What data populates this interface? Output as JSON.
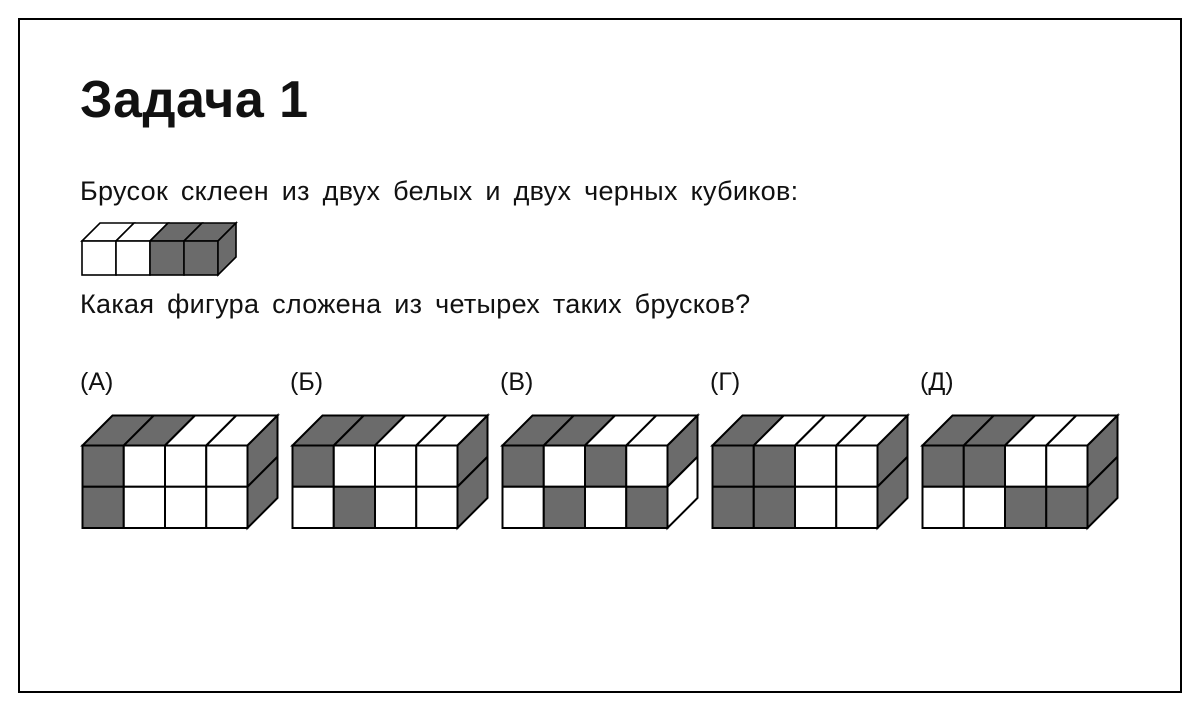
{
  "title": "Задача 1",
  "line1": "Брусок склеен из двух белых и двух черных кубиков:",
  "line2": "Какая фигура сложена из четырех таких брусков?",
  "colors": {
    "dark": "#6b6b6b",
    "light": "#ffffff",
    "stroke": "#000000",
    "bg": "#ffffff"
  },
  "bar": {
    "unit": 34,
    "depth": 18,
    "cells": [
      "L",
      "L",
      "D",
      "D"
    ]
  },
  "options": [
    {
      "label": "(А)",
      "top": [
        "D",
        "D",
        "L",
        "L"
      ],
      "side": [
        "D",
        "D"
      ],
      "front": [
        [
          "D",
          "L",
          "L",
          "L"
        ],
        [
          "D",
          "L",
          "L",
          "L"
        ]
      ]
    },
    {
      "label": "(Б)",
      "top": [
        "D",
        "D",
        "L",
        "L"
      ],
      "side": [
        "D",
        "D"
      ],
      "front": [
        [
          "D",
          "L",
          "L",
          "L"
        ],
        [
          "L",
          "D",
          "L",
          "L"
        ]
      ]
    },
    {
      "label": "(В)",
      "top": [
        "D",
        "D",
        "L",
        "L"
      ],
      "side": [
        "D",
        "L"
      ],
      "front": [
        [
          "D",
          "L",
          "D",
          "L"
        ],
        [
          "L",
          "D",
          "L",
          "D"
        ]
      ]
    },
    {
      "label": "(Г)",
      "top": [
        "D",
        "L",
        "L",
        "L"
      ],
      "side": [
        "D",
        "D"
      ],
      "front": [
        [
          "D",
          "D",
          "L",
          "L"
        ],
        [
          "D",
          "D",
          "L",
          "L"
        ]
      ]
    },
    {
      "label": "(Д)",
      "top": [
        "D",
        "D",
        "L",
        "L"
      ],
      "side": [
        "D",
        "D"
      ],
      "front": [
        [
          "D",
          "D",
          "L",
          "L"
        ],
        [
          "L",
          "L",
          "D",
          "D"
        ]
      ]
    }
  ],
  "block": {
    "unit": 33,
    "depth": 24
  }
}
